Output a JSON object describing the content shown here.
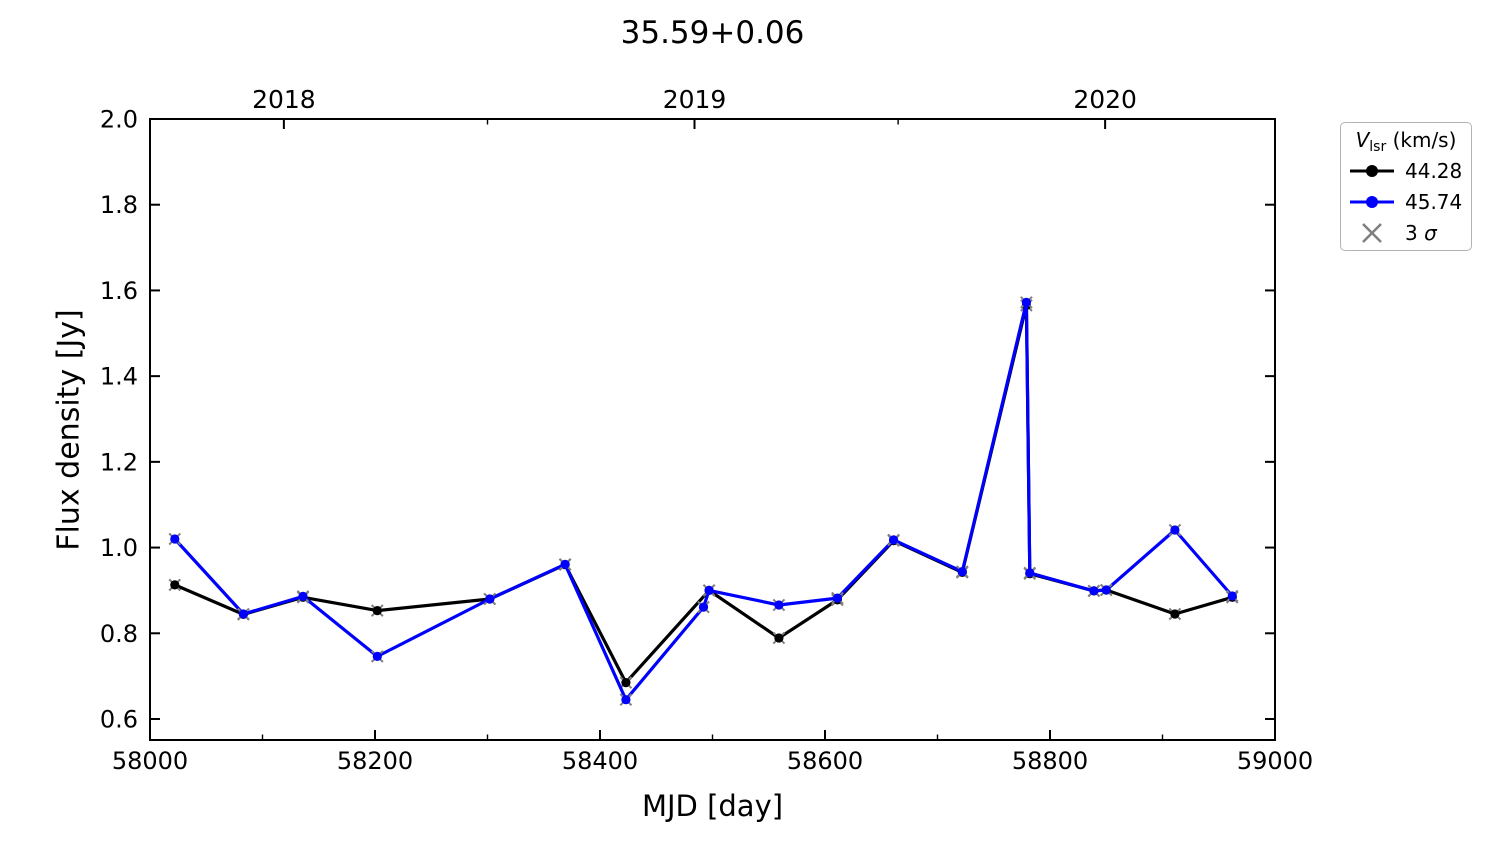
{
  "chart_data": {
    "type": "line",
    "title": "35.59+0.06",
    "xlabel": "MJD [day]",
    "ylabel": "Flux density [Jy]",
    "xlim": [
      58000,
      59000
    ],
    "ylim": [
      0.551,
      2.0
    ],
    "x_major_ticks": [
      58000,
      58200,
      58400,
      58600,
      58800,
      59000
    ],
    "x_major_labels": [
      "58000",
      "58200",
      "58400",
      "58600",
      "58800",
      "59000"
    ],
    "x_minor_ticks": [
      58100,
      58300,
      58500,
      58700,
      58900
    ],
    "y_major_ticks": [
      0.6,
      0.8,
      1.0,
      1.2,
      1.4,
      1.6,
      1.8,
      2.0
    ],
    "y_major_labels": [
      "0.6",
      "0.8",
      "1.0",
      "1.2",
      "1.4",
      "1.6",
      "1.8",
      "2.0"
    ],
    "top_axis_major_ticks": [
      58119,
      58484,
      58849
    ],
    "top_axis_major_labels": [
      "2018",
      "2019",
      "2020"
    ],
    "top_axis_minor_ticks": [
      58300,
      58665
    ],
    "series": [
      {
        "name": "44.28",
        "color": "#000000",
        "x": [
          58022,
          58083,
          58136,
          58202,
          58302,
          58369,
          58423,
          58497,
          58559,
          58611,
          58661,
          58722,
          58779,
          58782,
          58839,
          58850,
          58911,
          58962
        ],
        "values": [
          0.913,
          0.844,
          0.884,
          0.853,
          0.88,
          0.96,
          0.685,
          0.9,
          0.789,
          0.878,
          1.016,
          0.942,
          1.565,
          0.939,
          0.899,
          0.901,
          0.845,
          0.884
        ]
      },
      {
        "name": "45.74",
        "color": "#0000ff",
        "x": [
          58022,
          58083,
          58136,
          58202,
          58302,
          58369,
          58423,
          58492,
          58497,
          58559,
          58611,
          58661,
          58722,
          58779,
          58782,
          58839,
          58850,
          58911,
          58962
        ],
        "values": [
          1.02,
          0.845,
          0.886,
          0.746,
          0.88,
          0.961,
          0.645,
          0.861,
          0.9,
          0.866,
          0.882,
          1.018,
          0.944,
          1.572,
          0.941,
          0.899,
          0.901,
          1.041,
          0.887
        ]
      }
    ],
    "sigma": {
      "label": "3 σ",
      "color": "#808080",
      "marker": "x"
    },
    "legend": {
      "title_var": "V",
      "title_sub": "lsr",
      "title_unit": " (km/s)",
      "entries": [
        {
          "label": "44.28",
          "color": "#000000"
        },
        {
          "label": "45.74",
          "color": "#0000ff"
        }
      ],
      "sigma_prefix": "3 ",
      "sigma_symbol": "σ",
      "sigma_color": "#808080"
    }
  }
}
